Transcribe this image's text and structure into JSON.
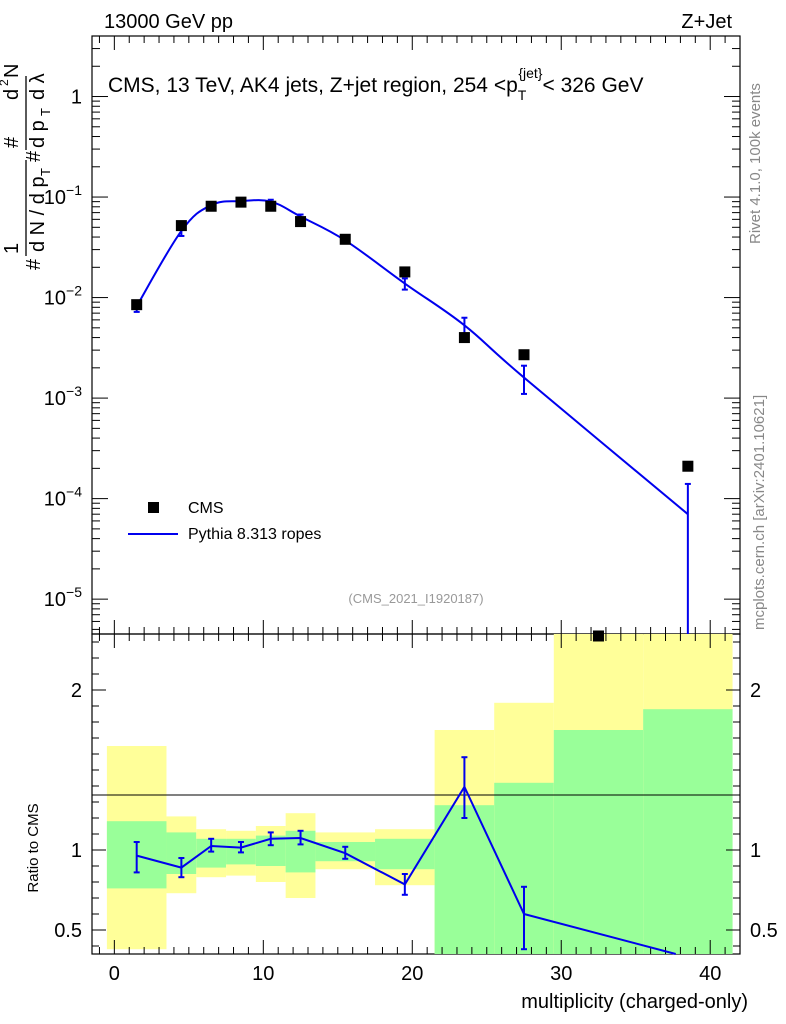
{
  "header": {
    "left": "13000 GeV pp",
    "right": "Z+Jet"
  },
  "side_labels": {
    "rivet": "Rivet 4.1.0,  100k events",
    "mcplots": "mcplots.cern.ch [arXiv:2401.10621]"
  },
  "colors": {
    "mc": "#0000ee",
    "green_band": "#99ff99",
    "yellow_band": "#ffff99",
    "data": "#000000"
  },
  "chart_data": [
    {
      "type": "scatter",
      "title": "CMS, 13 TeV, AK4 jets, Z+jet region, 254 <p_T^{jet}< 326 GeV",
      "annotation": "(CMS_2021_I1920187)",
      "ylabel": "1/N dN/dλ (#d²N / # dp_T dλ)",
      "yscale": "log",
      "ylim": [
        4.5e-06,
        4
      ],
      "xlim": [
        -1.5,
        42
      ],
      "y_tick_labels": [
        "10^-5",
        "10^-4",
        "10^-3",
        "10^-2",
        "10^-1",
        "1"
      ],
      "legend": [
        {
          "name": "CMS",
          "marker": "square"
        },
        {
          "name": "Pythia 8.313 ropes",
          "marker": "line"
        }
      ],
      "cms": {
        "x": [
          1.5,
          4.5,
          6.5,
          8.5,
          10.5,
          12.5,
          15.5,
          19.5,
          23.5,
          27.5,
          32.5,
          38.5
        ],
        "y": [
          0.0085,
          0.052,
          0.081,
          0.089,
          0.081,
          0.057,
          0.038,
          0.018,
          0.004,
          0.0027,
          4.3e-06,
          0.00021
        ]
      },
      "pythia": {
        "x": [
          1.5,
          4.5,
          6.5,
          8.5,
          10.5,
          12.5,
          15.5,
          19.5,
          23.5,
          27.5,
          38.5
        ],
        "y": [
          0.0082,
          0.046,
          0.083,
          0.091,
          0.09,
          0.064,
          0.037,
          0.0138,
          0.0053,
          0.0016,
          7e-05
        ],
        "err_lo": [
          0.0072,
          0.041,
          0.08,
          0.088,
          0.086,
          0.06,
          0.035,
          0.012,
          0.0042,
          0.0011,
          1e-07
        ],
        "err_hi": [
          0.0092,
          0.05,
          0.086,
          0.094,
          0.094,
          0.067,
          0.039,
          0.0155,
          0.0063,
          0.0021,
          0.00014
        ]
      }
    },
    {
      "type": "line",
      "title": "",
      "xlabel": "multiplicity (charged-only)",
      "ylabel": "Ratio to CMS",
      "ylim": [
        0.35,
        2.35
      ],
      "xlim": [
        -1.5,
        42
      ],
      "x_ticks": [
        0,
        10,
        20,
        30,
        40
      ],
      "y_ticks": [
        0.5,
        1,
        2
      ],
      "x_tick_labels": [
        "0",
        "10",
        "20",
        "30",
        "40"
      ],
      "y_tick_labels": [
        "0.5",
        "1",
        "2"
      ],
      "bands": [
        {
          "x0": -0.5,
          "x1": 3.5,
          "g_lo": 0.76,
          "g_hi": 1.18,
          "y_lo": 0.38,
          "y_hi": 1.65
        },
        {
          "x0": 3.5,
          "x1": 5.5,
          "g_lo": 0.85,
          "g_hi": 1.11,
          "y_lo": 0.73,
          "y_hi": 1.21
        },
        {
          "x0": 5.5,
          "x1": 7.5,
          "g_lo": 0.89,
          "g_hi": 1.07,
          "y_lo": 0.83,
          "y_hi": 1.13
        },
        {
          "x0": 7.5,
          "x1": 9.5,
          "g_lo": 0.91,
          "g_hi": 1.07,
          "y_lo": 0.84,
          "y_hi": 1.12
        },
        {
          "x0": 9.5,
          "x1": 11.5,
          "g_lo": 0.9,
          "g_hi": 1.09,
          "y_lo": 0.8,
          "y_hi": 1.15
        },
        {
          "x0": 11.5,
          "x1": 13.5,
          "g_lo": 0.86,
          "g_hi": 1.12,
          "y_lo": 0.7,
          "y_hi": 1.23
        },
        {
          "x0": 13.5,
          "x1": 17.5,
          "g_lo": 0.93,
          "g_hi": 1.05,
          "y_lo": 0.88,
          "y_hi": 1.11
        },
        {
          "x0": 17.5,
          "x1": 21.5,
          "g_lo": 0.88,
          "g_hi": 1.07,
          "y_lo": 0.78,
          "y_hi": 1.13
        },
        {
          "x0": 21.5,
          "x1": 25.5,
          "g_lo": 0.35,
          "g_hi": 1.28,
          "y_lo": 0.35,
          "y_hi": 1.75
        },
        {
          "x0": 25.5,
          "x1": 29.5,
          "g_lo": 0.35,
          "g_hi": 1.42,
          "y_lo": 0.35,
          "y_hi": 1.92
        },
        {
          "x0": 29.5,
          "x1": 35.5,
          "g_lo": 0.35,
          "g_hi": 1.75,
          "y_lo": 0.35,
          "y_hi": 2.35
        },
        {
          "x0": 35.5,
          "x1": 41.5,
          "g_lo": 0.35,
          "g_hi": 1.88,
          "y_lo": 0.35,
          "y_hi": 2.35
        }
      ],
      "pythia_ratio": {
        "x": [
          1.5,
          4.5,
          6.5,
          8.5,
          10.5,
          12.5,
          15.5,
          19.5,
          23.5,
          27.5,
          38.5
        ],
        "y": [
          0.965,
          0.89,
          1.025,
          1.015,
          1.07,
          1.075,
          0.98,
          0.785,
          1.395,
          0.6,
          0.33
        ],
        "err_lo": [
          0.86,
          0.83,
          0.99,
          0.985,
          1.03,
          1.035,
          0.945,
          0.72,
          1.2,
          0.38,
          0.33
        ],
        "err_hi": [
          1.05,
          0.95,
          1.07,
          1.05,
          1.11,
          1.12,
          1.02,
          0.85,
          1.58,
          0.77,
          0.33
        ]
      }
    }
  ]
}
